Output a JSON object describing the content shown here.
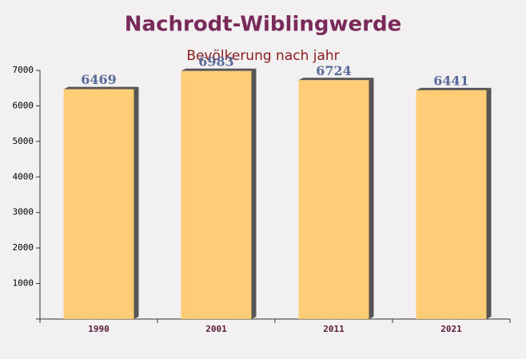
{
  "chart_data": {
    "type": "bar",
    "title": "Nachrodt-Wiblingwerde",
    "subtitle": "Bevölkerung nach jahr",
    "categories": [
      "1990",
      "2001",
      "2011",
      "2021"
    ],
    "values": [
      6469,
      6983,
      6724,
      6441
    ],
    "color": "#ffc966",
    "ylim": [
      0,
      7000
    ],
    "yticks": [
      0,
      1000,
      2000,
      3000,
      4000,
      5000,
      6000,
      7000
    ],
    "grid": false
  }
}
